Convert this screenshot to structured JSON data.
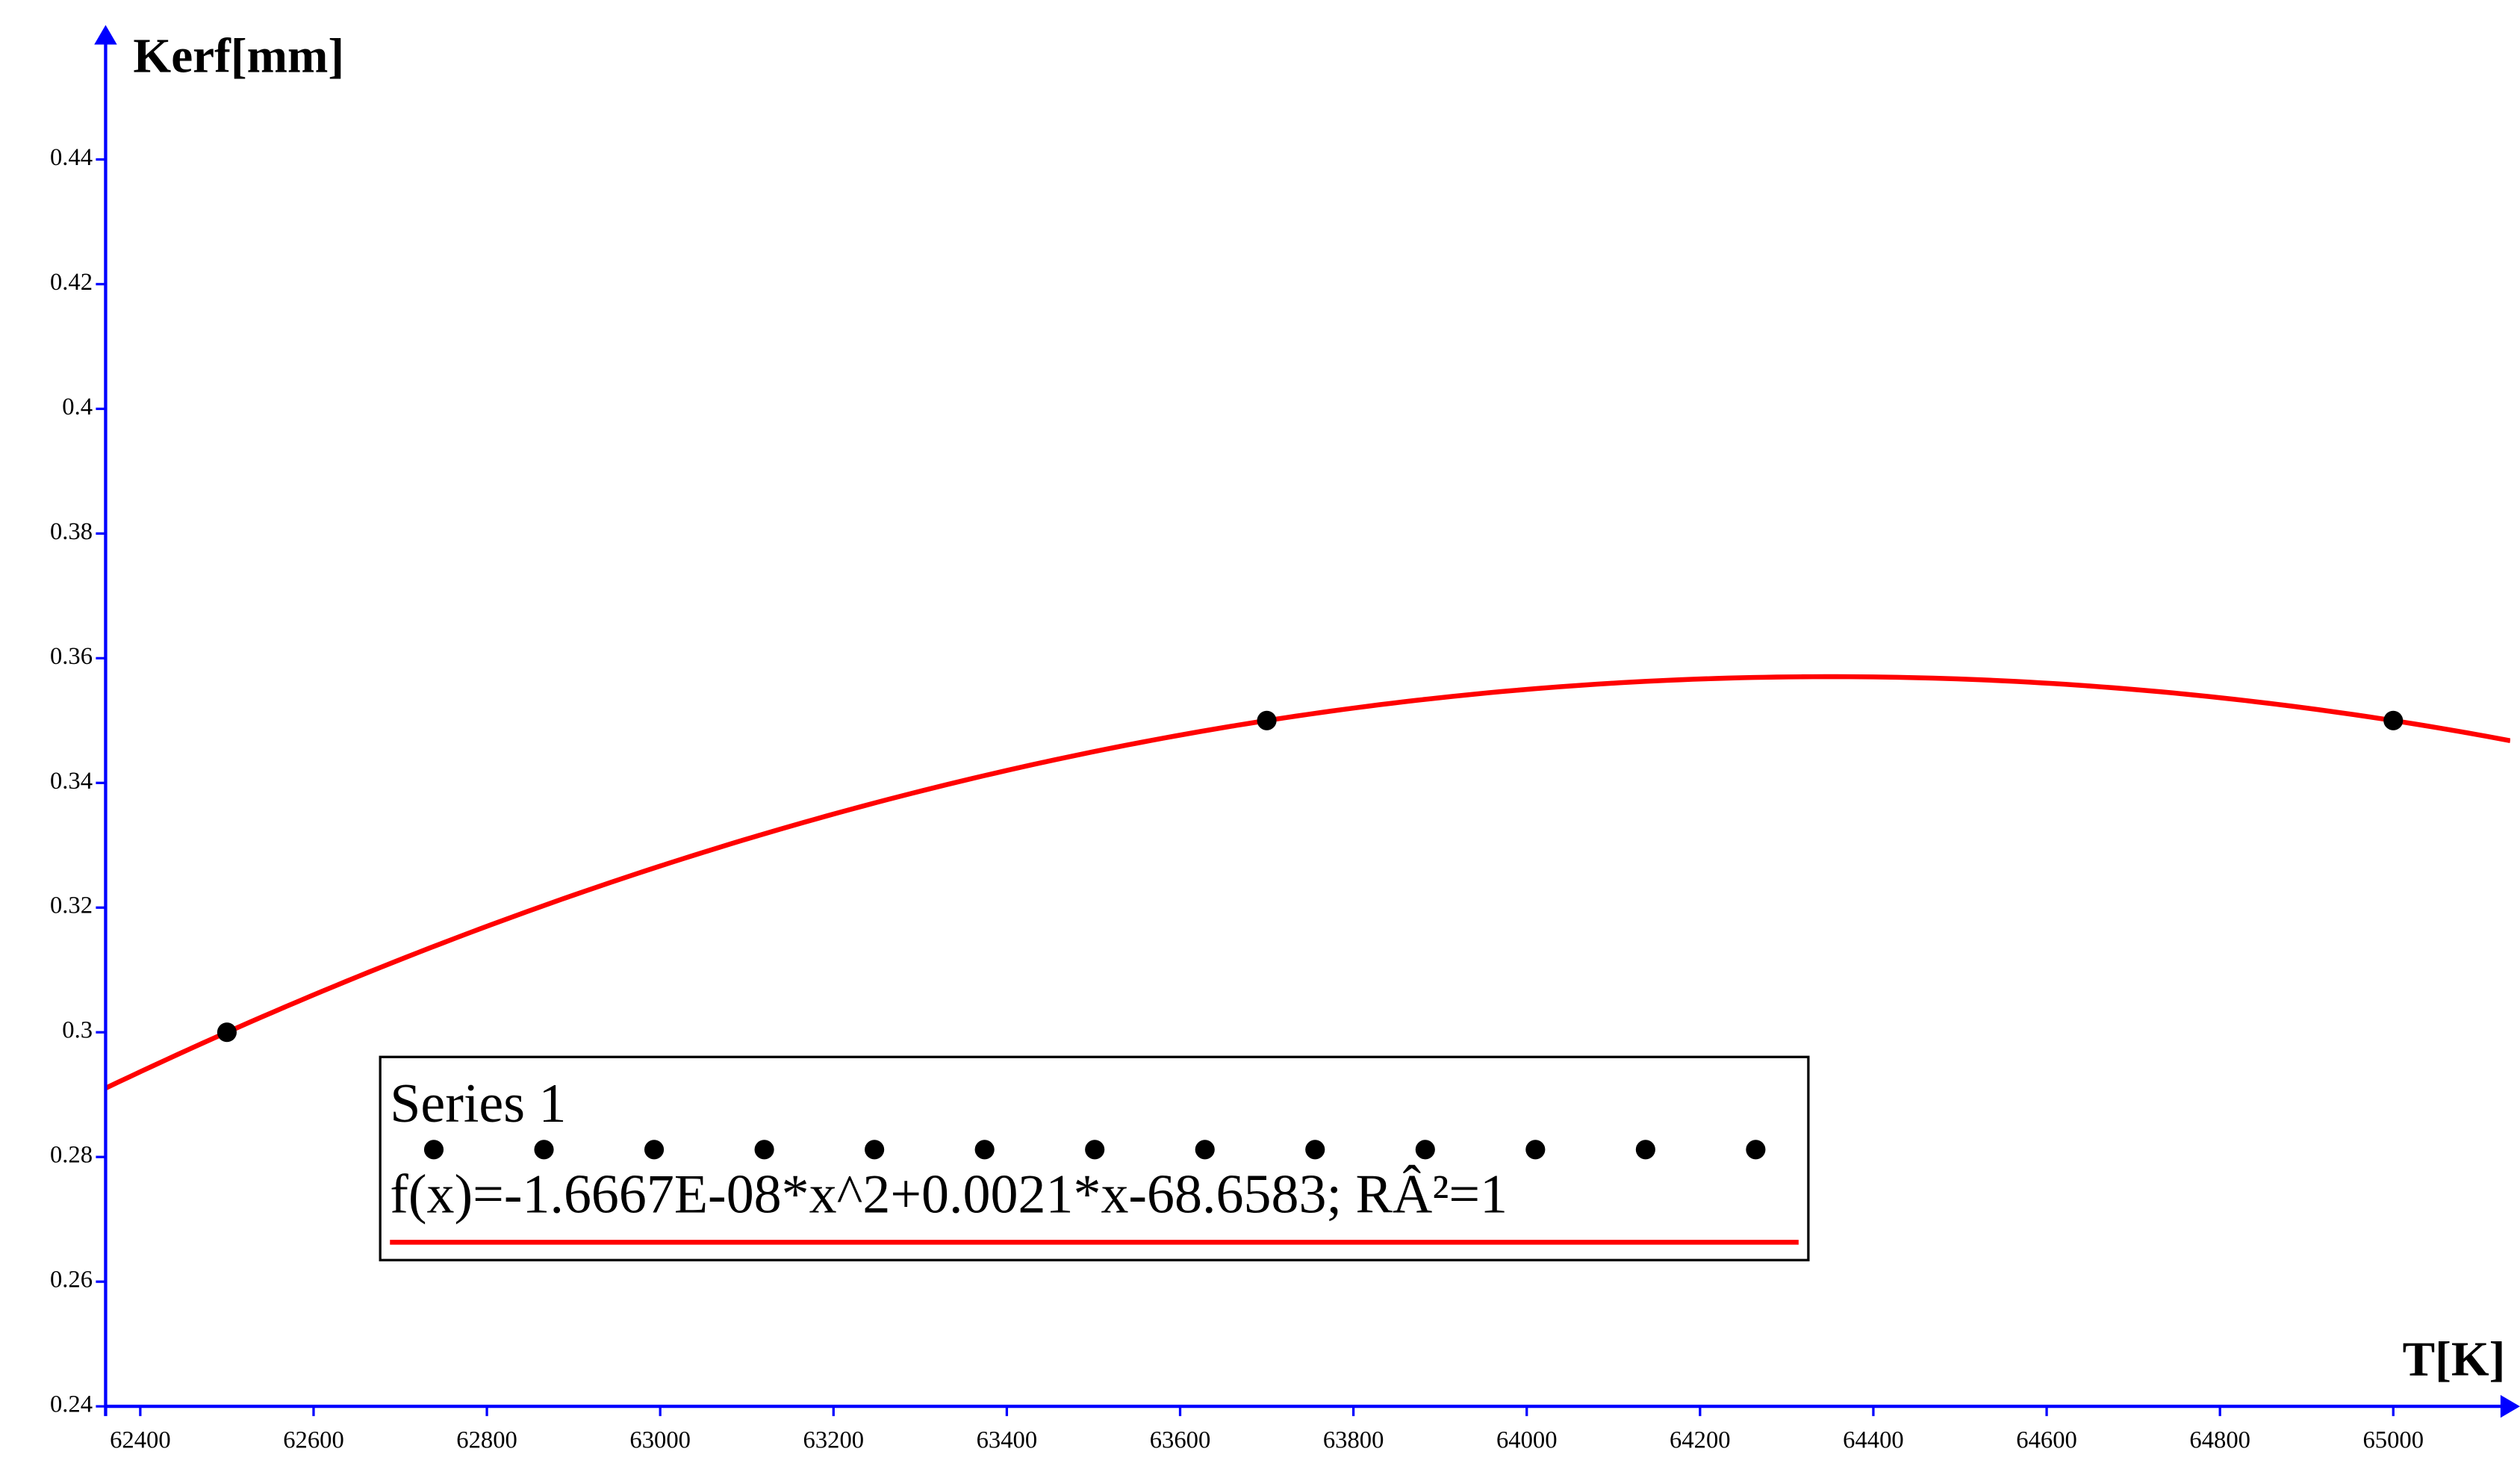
{
  "chart_data": {
    "type": "scatter",
    "x_label": "T[K]",
    "y_label": "Kerf[mm]",
    "x": [
      62500,
      63700,
      65000
    ],
    "series": [
      {
        "name": "Series 1",
        "color": "#000000",
        "values": [
          0.3,
          0.35,
          0.35
        ],
        "trendline": {
          "type": "polynomial",
          "color": "#ff0000",
          "label": "f(x)=-1.6667E-08*x^2+0.0021*x-68.6583; RÂ²=1"
        }
      }
    ],
    "xlim": [
      62360,
      65135
    ],
    "xticks": [
      62400,
      62600,
      62800,
      63000,
      63200,
      63400,
      63600,
      63800,
      64000,
      64200,
      64400,
      64600,
      64800,
      65000
    ],
    "ylim": [
      0.24,
      0.46
    ],
    "yticks": [
      0.24,
      0.26,
      0.28,
      0.3,
      0.32,
      0.34,
      0.36,
      0.38,
      0.4,
      0.42,
      0.44
    ],
    "axis_color": "#0000ff",
    "grid": false,
    "legend": "lower-left"
  }
}
